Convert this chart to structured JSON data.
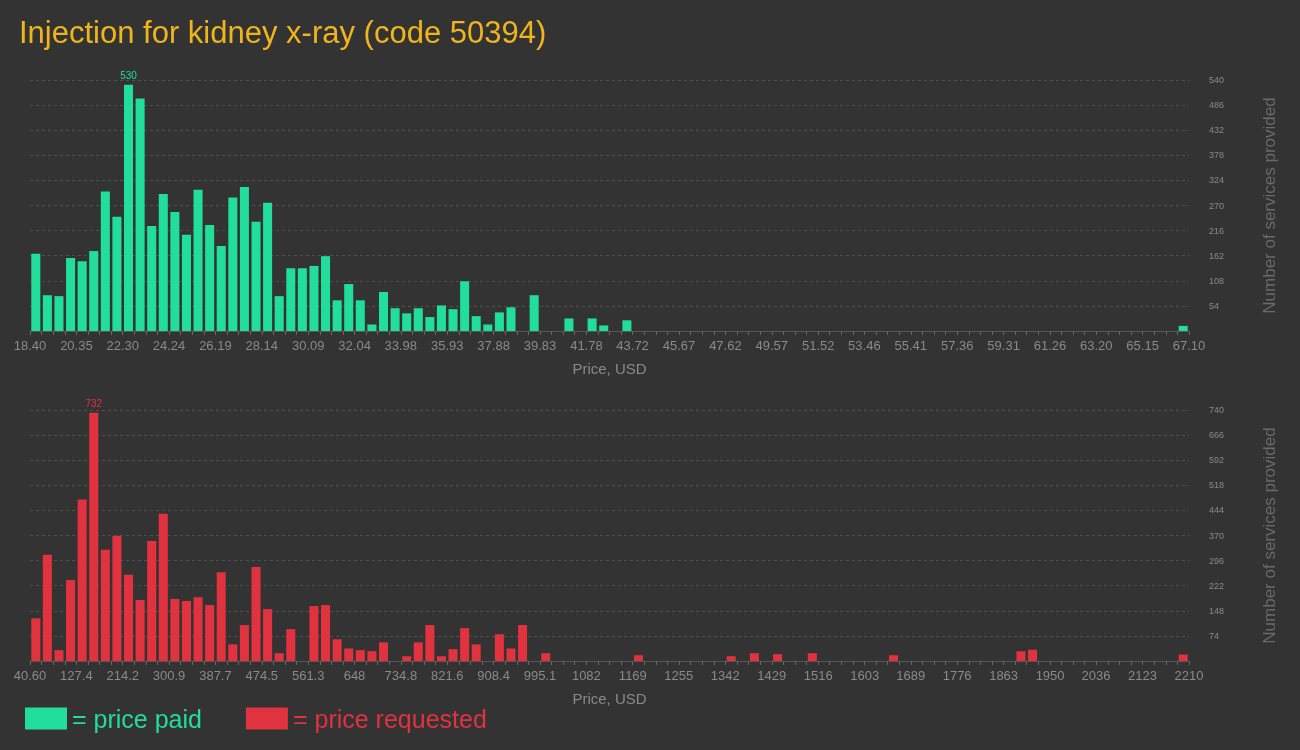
{
  "chart_data": [
    {
      "type": "histogram",
      "title": "Injection for kidney x-ray (code 50394)",
      "xlabel": "Price, USD",
      "ylabel": "Number of services provided",
      "bins": [
        18.4,
        18.887,
        19.374,
        19.861,
        20.348,
        20.835,
        21.322,
        21.809,
        22.296,
        22.783,
        23.27,
        23.757,
        24.244,
        24.731,
        25.218,
        25.705,
        26.192,
        26.679,
        27.166,
        27.653,
        28.14,
        28.627,
        29.114,
        29.601,
        30.088,
        30.575,
        31.062,
        31.549,
        32.036,
        32.523,
        33.01,
        33.497,
        33.984,
        34.471,
        34.958,
        35.445,
        35.932,
        36.419,
        36.906,
        37.393,
        37.88,
        38.367,
        38.854,
        39.341,
        39.828,
        40.315,
        40.802,
        41.289,
        41.776,
        42.263,
        42.75,
        43.237,
        43.724,
        44.211,
        44.698,
        45.185,
        45.672,
        46.159,
        46.646,
        47.133,
        47.62,
        48.107,
        48.594,
        49.081,
        49.568,
        50.055,
        50.542,
        51.029,
        51.516,
        52.003,
        52.49,
        52.977,
        53.464,
        53.951,
        54.438,
        54.925,
        55.412,
        55.899,
        56.386,
        56.873,
        57.36,
        57.847,
        58.334,
        58.821,
        59.308,
        59.795,
        60.282,
        60.769,
        61.256,
        61.743,
        62.23,
        62.717,
        63.204,
        63.691,
        64.178,
        64.665,
        65.152,
        65.639,
        66.126,
        66.613,
        67.1
      ],
      "series": [
        {
          "name": "= price paid",
          "color": "#21de9c",
          "values": [
            166,
            77,
            75,
            157,
            150,
            172,
            300,
            246,
            530,
            500,
            226,
            295,
            256,
            207,
            304,
            228,
            183,
            287,
            310,
            235,
            276,
            75,
            135,
            135,
            140,
            161,
            66,
            101,
            66,
            14,
            84,
            49,
            38,
            49,
            30,
            55,
            47,
            107,
            32,
            14,
            40,
            51,
            0,
            77,
            0,
            0,
            27,
            0,
            27,
            12,
            0,
            23,
            0,
            0,
            0,
            0,
            0,
            0,
            0,
            0,
            0,
            0,
            0,
            0,
            0,
            0,
            0,
            0,
            0,
            0,
            0,
            0,
            0,
            0,
            0,
            0,
            0,
            0,
            0,
            0,
            0,
            0,
            0,
            0,
            0,
            0,
            0,
            0,
            0,
            0,
            0,
            0,
            0,
            0,
            0,
            0,
            0,
            0,
            0,
            11
          ],
          "value_labels": [
            null,
            null,
            null,
            null,
            null,
            null,
            null,
            null,
            "530",
            null,
            null,
            null,
            null,
            null,
            null,
            null,
            null,
            null,
            null,
            null,
            null,
            null,
            null,
            null,
            null,
            null,
            null,
            null,
            null,
            null,
            null,
            null,
            null,
            null,
            null,
            null,
            null,
            null,
            null,
            null,
            null,
            null,
            null,
            null,
            null,
            null,
            null,
            null,
            null,
            null,
            null,
            null,
            null,
            null,
            null,
            null,
            null,
            null,
            null,
            null,
            null,
            null,
            null,
            null,
            null,
            null,
            null,
            null,
            null,
            null,
            null,
            null,
            null,
            null,
            null,
            null,
            null,
            null,
            null,
            null,
            null,
            null,
            null,
            null,
            null,
            null,
            null,
            null,
            null,
            null,
            null,
            null,
            null,
            null,
            null,
            null,
            null,
            null,
            null,
            null
          ]
        }
      ],
      "xlim": [
        18.4,
        67.1
      ],
      "xticks": [
        {
          "value": 18.4,
          "label": "18.40"
        },
        20.35,
        {
          "value": 22.3,
          "label": "22.30"
        },
        24.24,
        26.19,
        28.14,
        30.09,
        32.04,
        33.98,
        35.93,
        37.88,
        39.83,
        41.78,
        43.72,
        45.67,
        47.62,
        49.57,
        51.52,
        53.46,
        55.41,
        57.36,
        59.31,
        61.26,
        {
          "value": 63.2,
          "label": "63.20"
        },
        65.15,
        {
          "value": 67.1,
          "label": "67.10"
        }
      ],
      "ylim": [
        0,
        540
      ],
      "yticks": [
        54,
        108,
        162,
        216,
        270,
        324,
        378,
        432,
        486,
        540
      ],
      "grid": "y",
      "legend": "bottom left"
    },
    {
      "type": "histogram",
      "xlabel": "Price, USD",
      "ylabel": "Number of services provided",
      "bins": [
        40.6,
        62.294,
        83.988,
        105.682,
        127.376,
        149.07,
        170.764,
        192.458,
        214.152,
        235.846,
        257.54,
        279.234,
        300.928,
        322.622,
        344.316,
        366.01,
        387.704,
        409.398,
        431.092,
        452.786,
        474.48,
        496.174,
        517.868,
        539.562,
        561.256,
        582.95,
        604.644,
        626.338,
        648.032,
        669.726,
        691.42,
        713.114,
        734.808,
        756.502,
        778.196,
        799.89,
        821.584,
        843.278,
        864.972,
        886.666,
        908.36,
        930.054,
        951.748,
        973.442,
        995.136,
        1016.83,
        1038.524,
        1060.218,
        1081.912,
        1103.606,
        1125.3,
        1146.994,
        1168.688,
        1190.382,
        1212.076,
        1233.77,
        1255.464,
        1277.158,
        1298.852,
        1320.546,
        1342.24,
        1363.934,
        1385.628,
        1407.322,
        1429.016,
        1450.71,
        1472.404,
        1494.098,
        1515.792,
        1537.486,
        1559.18,
        1580.874,
        1602.568,
        1624.262,
        1645.956,
        1667.65,
        1689.344,
        1711.038,
        1732.732,
        1754.426,
        1776.12,
        1797.814,
        1819.508,
        1841.202,
        1862.896,
        1884.59,
        1906.284,
        1927.978,
        1949.672,
        1971.366,
        1993.06,
        2014.754,
        2036.448,
        2058.142,
        2079.836,
        2101.53,
        2123.224,
        2144.918,
        2166.612,
        2188.306,
        2210
      ],
      "series": [
        {
          "name": "= price requested",
          "color": "#e0323f",
          "values": [
            126,
            313,
            32,
            239,
            476,
            732,
            328,
            369,
            254,
            180,
            354,
            434,
            183,
            177,
            188,
            165,
            262,
            49,
            106,
            277,
            153,
            23,
            94,
            0,
            162,
            165,
            64,
            37,
            32,
            29,
            55,
            0,
            14,
            55,
            106,
            14,
            35,
            97,
            49,
            0,
            79,
            37,
            106,
            0,
            23,
            0,
            0,
            0,
            0,
            0,
            0,
            0,
            17,
            0,
            0,
            0,
            0,
            0,
            0,
            0,
            14,
            0,
            23,
            0,
            20,
            0,
            0,
            23,
            0,
            0,
            0,
            0,
            0,
            0,
            17,
            0,
            0,
            0,
            0,
            0,
            0,
            0,
            0,
            0,
            0,
            29,
            33,
            0,
            0,
            0,
            0,
            0,
            0,
            0,
            0,
            0,
            0,
            0,
            0,
            19
          ],
          "value_labels": [
            null,
            null,
            null,
            null,
            null,
            "732",
            null,
            null,
            null,
            null,
            null,
            null,
            null,
            null,
            null,
            null,
            null,
            null,
            null,
            null,
            null,
            null,
            null,
            null,
            null,
            null,
            null,
            null,
            null,
            null,
            null,
            null,
            null,
            null,
            null,
            null,
            null,
            null,
            null,
            null,
            null,
            null,
            null,
            null,
            null,
            null,
            null,
            null,
            null,
            null,
            null,
            null,
            null,
            null,
            null,
            null,
            null,
            null,
            null,
            null,
            null,
            null,
            null,
            null,
            null,
            null,
            null,
            null,
            null,
            null,
            null,
            null,
            null,
            null,
            null,
            null,
            null,
            null,
            null,
            null,
            null,
            null,
            null,
            null,
            null,
            null,
            null,
            null,
            null,
            null,
            null,
            null,
            null,
            null,
            null,
            null,
            null,
            null,
            null,
            null
          ]
        }
      ],
      "xlim": [
        40.6,
        2210
      ],
      "xticks": [
        {
          "value": 40.6,
          "label": "40.60"
        },
        127.4,
        214.2,
        300.9,
        387.7,
        474.5,
        561.3,
        648,
        734.8,
        821.6,
        908.4,
        995.1,
        1082,
        1169,
        1255,
        1342,
        1429,
        1516,
        1603,
        1689,
        1776,
        1863,
        1950,
        2036,
        2123,
        2210
      ],
      "ylim": [
        0,
        740
      ],
      "yticks": [
        74,
        148,
        222,
        296,
        370,
        444,
        518,
        592,
        666,
        740
      ],
      "grid": "y",
      "legend": "bottom left"
    }
  ]
}
